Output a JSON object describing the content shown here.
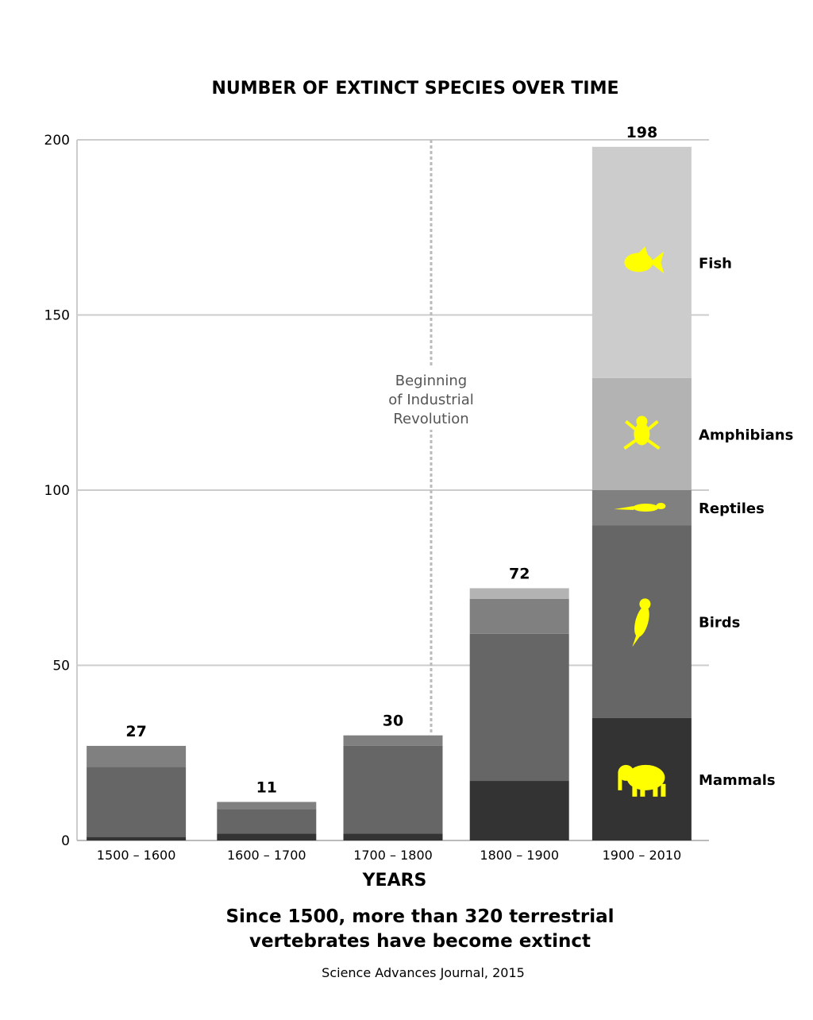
{
  "chart_data": {
    "type": "bar",
    "stacked": true,
    "title": "NUMBER OF EXTINCT SPECIES OVER TIME",
    "xlabel": "YEARS",
    "ylabel": "",
    "ylim": [
      0,
      200
    ],
    "yticks": [
      0,
      50,
      100,
      150,
      200
    ],
    "grid": true,
    "categories": [
      "1500 – 1600",
      "1600 – 1700",
      "1700 – 1800",
      "1800 – 1900",
      "1900 – 2010"
    ],
    "totals": [
      27,
      11,
      30,
      72,
      198
    ],
    "series": [
      {
        "name": "Mammals",
        "color": "#333333",
        "icon": "elephant-icon",
        "values": [
          1,
          2,
          2,
          17,
          35
        ]
      },
      {
        "name": "Birds",
        "color": "#666666",
        "icon": "cockatoo-icon",
        "values": [
          20,
          7,
          25,
          42,
          55
        ]
      },
      {
        "name": "Reptiles",
        "color": "#808080",
        "icon": "lizard-icon",
        "values": [
          6,
          2,
          3,
          10,
          10
        ]
      },
      {
        "name": "Amphibians",
        "color": "#b3b3b3",
        "icon": "frog-icon",
        "values": [
          0,
          0,
          0,
          3,
          32
        ]
      },
      {
        "name": "Fish",
        "color": "#cccccc",
        "icon": "fish-icon",
        "values": [
          0,
          0,
          0,
          0,
          66
        ]
      }
    ],
    "icon_color": "#ffff00",
    "annotation": {
      "lines": [
        "Beginning",
        "of Industrial",
        "Revolution"
      ],
      "between": [
        "1700 – 1800",
        "1800 – 1900"
      ]
    },
    "legend_placement": "right of last bar"
  },
  "subtitle_lines": [
    "Since 1500, more than 320 terrestrial",
    "vertebrates have become extinct"
  ],
  "source": "Science Advances Journal, 2015"
}
